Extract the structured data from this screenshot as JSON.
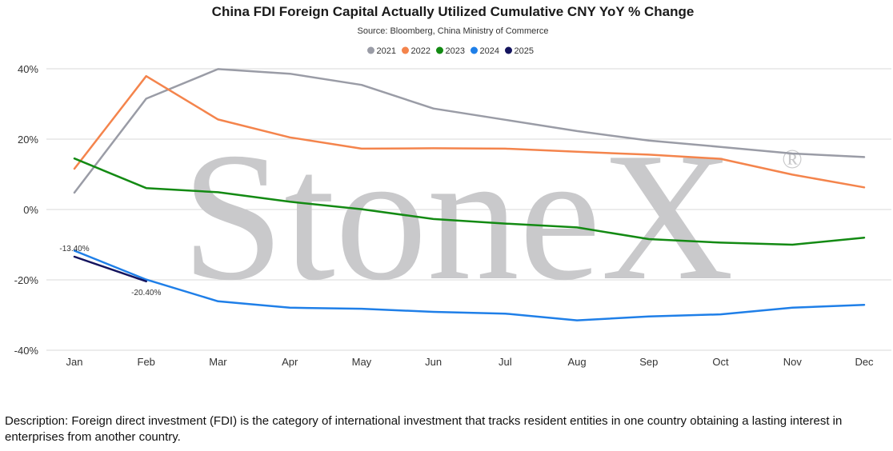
{
  "chart_data": {
    "type": "line",
    "title": "China FDI Foreign Capital Actually Utilized Cumulative CNY YoY % Change",
    "subtitle": "Source: Bloomberg, China Ministry of Commerce",
    "categories": [
      "Jan",
      "Feb",
      "Mar",
      "Apr",
      "May",
      "Jun",
      "Jul",
      "Aug",
      "Sep",
      "Oct",
      "Nov",
      "Dec"
    ],
    "y_ticks": [
      "40%",
      "20%",
      "0%",
      "-20%",
      "-40%"
    ],
    "ylim": [
      -40,
      40
    ],
    "y_unit": "%",
    "grid": "horizontal",
    "legend_position": "top-center",
    "series": [
      {
        "name": "2021",
        "color": "#9a9ca6",
        "values": [
          4.8,
          31.5,
          39.9,
          38.6,
          35.4,
          28.7,
          25.5,
          22.3,
          19.6,
          17.8,
          15.9,
          14.9
        ]
      },
      {
        "name": "2022",
        "color": "#f4844c",
        "values": [
          11.6,
          37.9,
          25.6,
          20.5,
          17.3,
          17.4,
          17.3,
          16.4,
          15.6,
          14.4,
          9.9,
          6.3
        ]
      },
      {
        "name": "2023",
        "color": "#138a13",
        "values": [
          14.5,
          6.1,
          4.9,
          2.2,
          0.1,
          -2.7,
          -4.0,
          -5.1,
          -8.4,
          -9.4,
          -10.0,
          -8.0
        ]
      },
      {
        "name": "2024",
        "color": "#1f7fe8",
        "values": [
          -11.7,
          -19.9,
          -26.1,
          -27.9,
          -28.2,
          -29.1,
          -29.6,
          -31.5,
          -30.4,
          -29.8,
          -27.9,
          -27.1
        ]
      },
      {
        "name": "2025",
        "color": "#14145e",
        "values": [
          -13.4,
          -20.4,
          null,
          null,
          null,
          null,
          null,
          null,
          null,
          null,
          null,
          null
        ]
      }
    ],
    "annotations": [
      {
        "series": "2025",
        "category": "Jan",
        "text": "-13.40%"
      },
      {
        "series": "2025",
        "category": "Feb",
        "text": "-20.40%"
      }
    ]
  },
  "watermark": {
    "text": "StoneX",
    "mark": "®"
  },
  "description": "Description: Foreign direct investment (FDI) is the category of international investment that tracks resident entities in one country obtaining a lasting interest in enterprises from another country."
}
